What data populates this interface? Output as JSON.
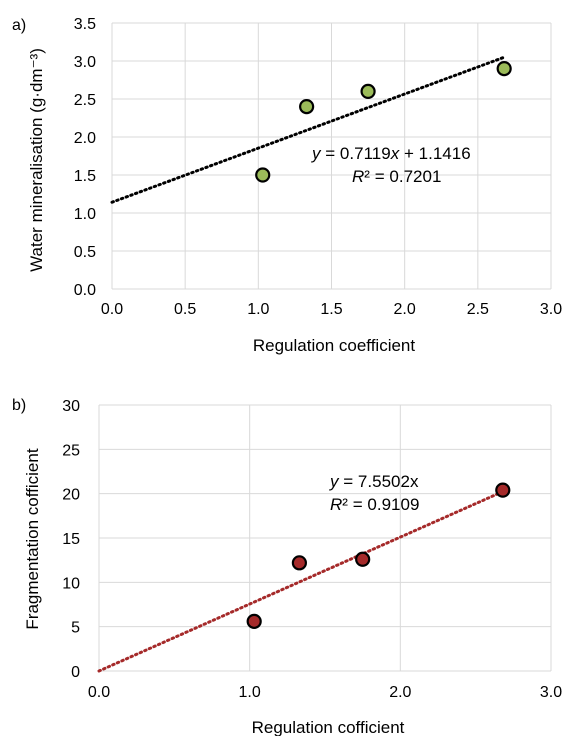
{
  "chart_data": [
    {
      "type": "scatter",
      "panel_label": "a)",
      "xlabel": "Regulation coefficient",
      "ylabel": "Water mineralisation (g·dm⁻³)",
      "xlim": [
        0,
        3
      ],
      "ylim": [
        0,
        3.5
      ],
      "x_ticks": [
        "0.0",
        "0.5",
        "1.0",
        "1.5",
        "2.0",
        "2.5",
        "3.0"
      ],
      "y_ticks": [
        "0.0",
        "0.5",
        "1.0",
        "1.5",
        "2.0",
        "2.5",
        "3.0",
        "3.5"
      ],
      "grid": true,
      "marker_color": "#9bbb59",
      "trend_color": "#000000",
      "points": [
        {
          "x": 1.03,
          "y": 1.5
        },
        {
          "x": 1.33,
          "y": 2.4
        },
        {
          "x": 1.75,
          "y": 2.6
        },
        {
          "x": 2.68,
          "y": 2.9
        }
      ],
      "trendline": {
        "slope": 0.7119,
        "intercept": 1.1416,
        "x_range": [
          0,
          2.68
        ]
      },
      "equation": "y = 0.7119x + 1.1416",
      "r2": "R² = 0.7201"
    },
    {
      "type": "scatter",
      "panel_label": "b)",
      "xlabel": "Regulation cofficient",
      "ylabel": "Fragmentation cofficient",
      "xlim": [
        0,
        3
      ],
      "ylim": [
        0,
        30
      ],
      "x_ticks": [
        "0.0",
        "1.0",
        "2.0",
        "3.0"
      ],
      "y_ticks": [
        "0",
        "5",
        "10",
        "15",
        "20",
        "25",
        "30"
      ],
      "grid": true,
      "marker_color": "#a52a2a",
      "trend_color": "#a52a2a",
      "points": [
        {
          "x": 1.03,
          "y": 5.6
        },
        {
          "x": 1.33,
          "y": 12.2
        },
        {
          "x": 1.75,
          "y": 12.6
        },
        {
          "x": 2.68,
          "y": 20.4
        }
      ],
      "trendline": {
        "slope": 7.5502,
        "intercept": 0,
        "x_range": [
          0,
          2.68
        ]
      },
      "equation": "y = 7.5502x",
      "r2": "R² = 0.9109"
    }
  ]
}
